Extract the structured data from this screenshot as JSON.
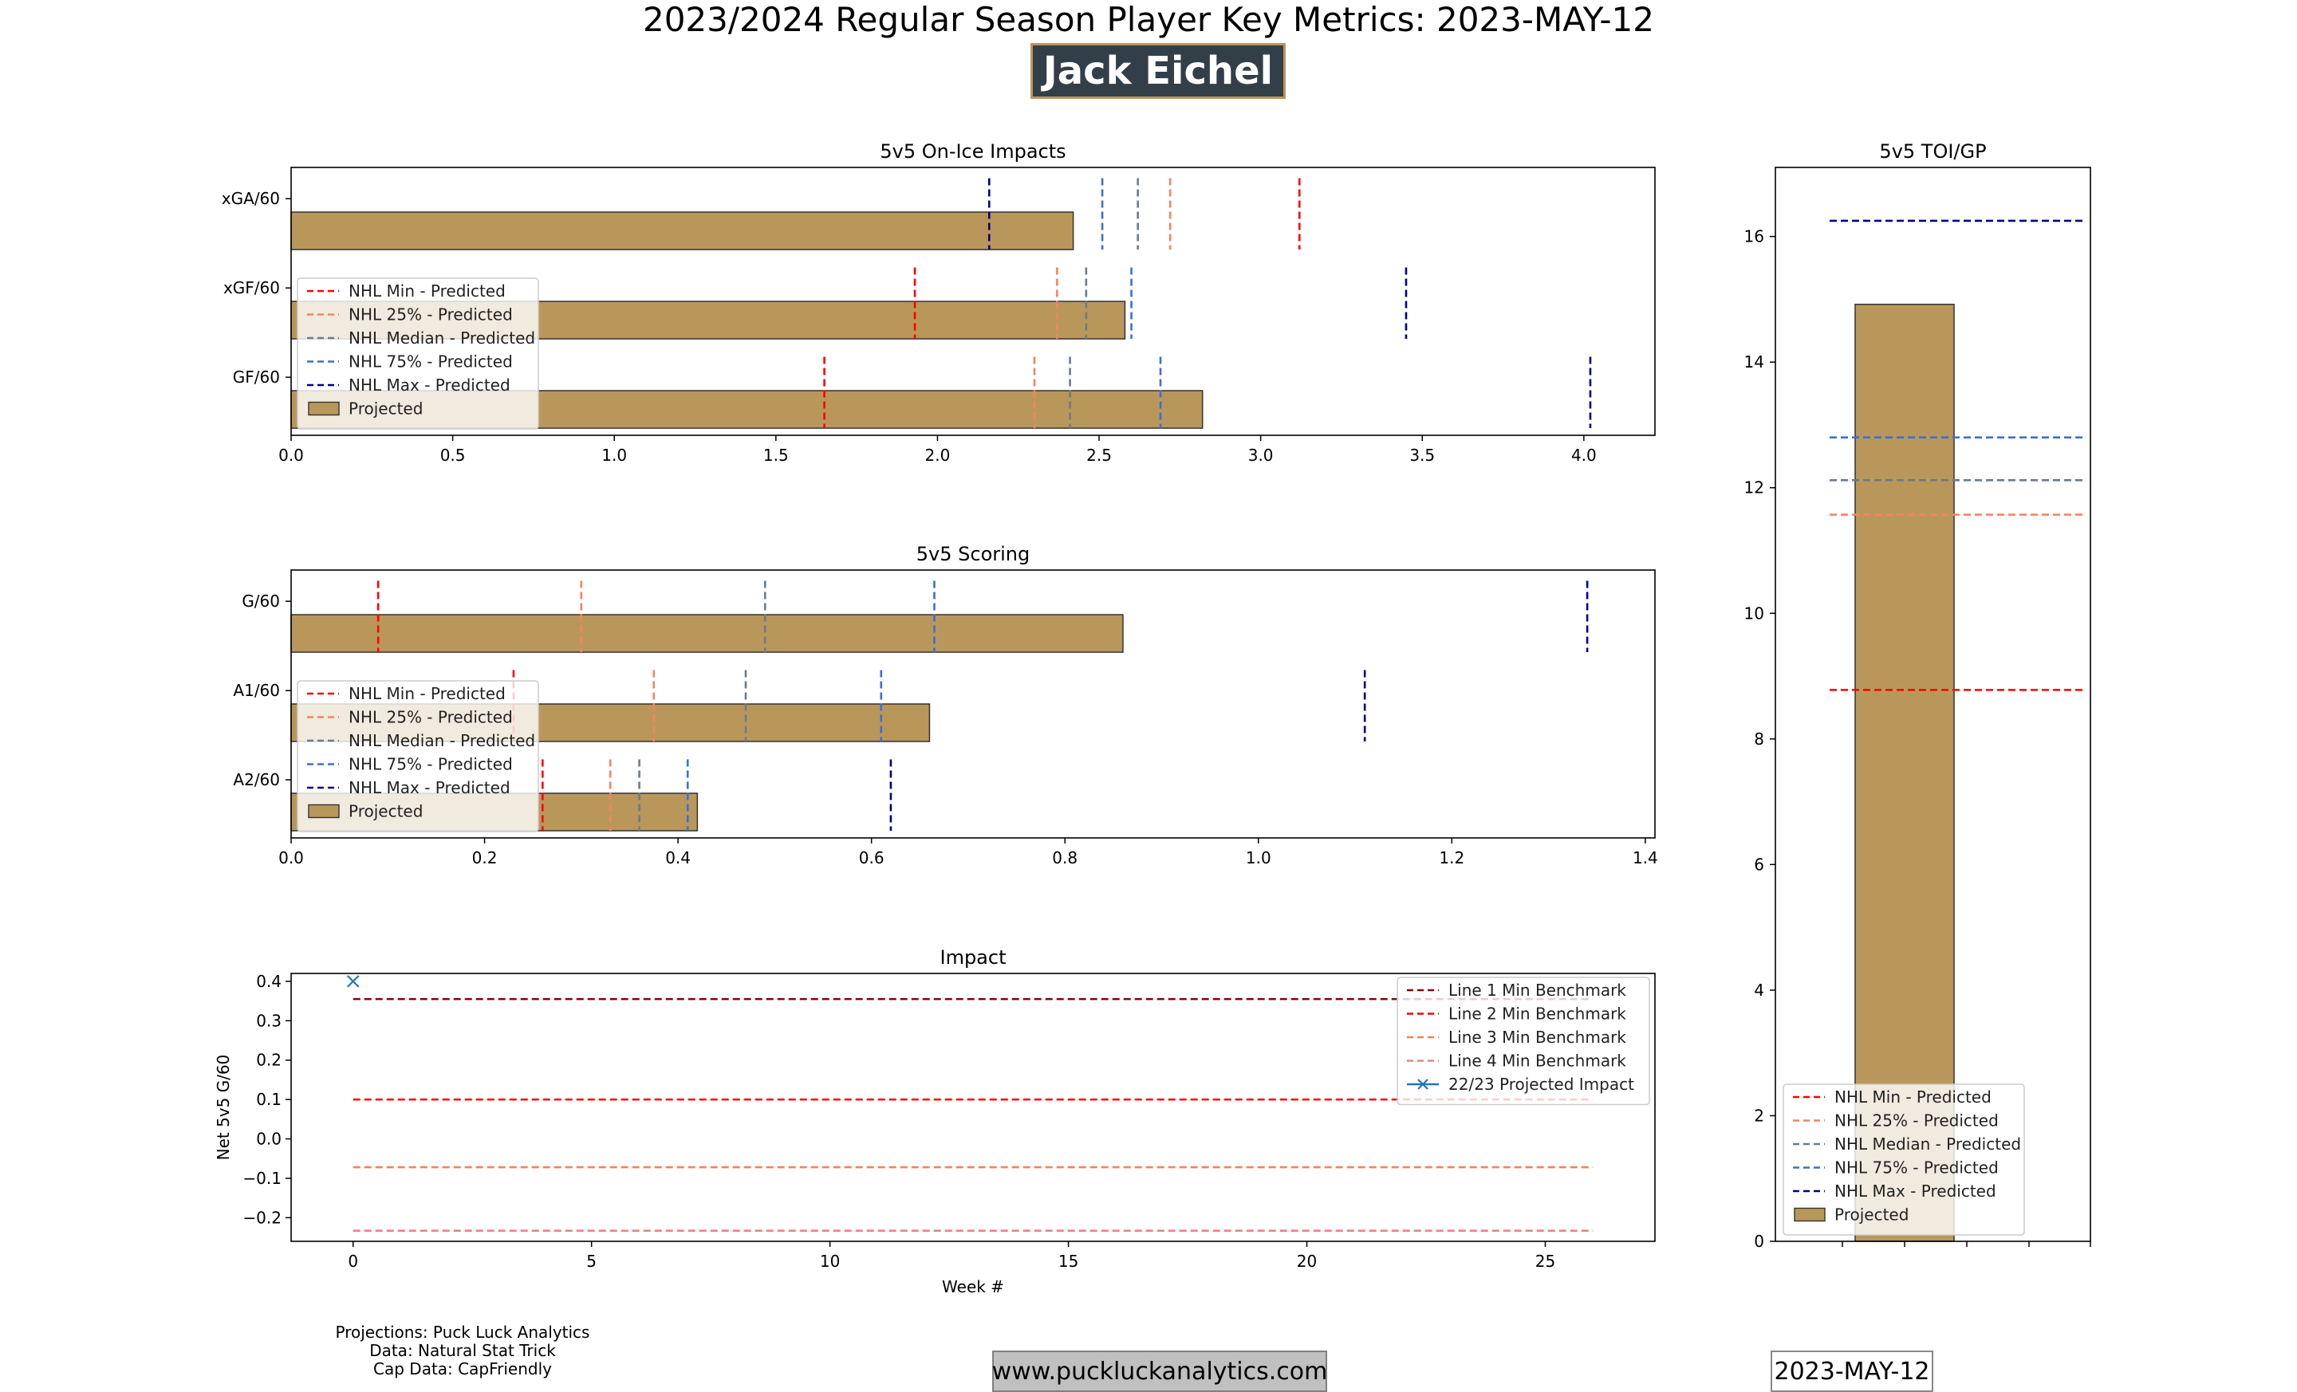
{
  "suptitle": "2023/2024 Regular Season Player Key Metrics: 2023-MAY-12",
  "player_name": "Jack Eichel",
  "credits": [
    "Projections: Puck Luck Analytics",
    "Data: Natural Stat Trick",
    "Cap Data: CapFriendly"
  ],
  "website": "www.puckluckanalytics.com",
  "date_badge": "2023-MAY-12",
  "colors": {
    "projected_fill": "#b9975b",
    "nhl_min": "#ff0000",
    "nhl_25": "#f4845f",
    "nhl_median": "#6b7b8c",
    "nhl_75": "#3a6fd8",
    "nhl_max": "#00008b",
    "line1": "#8b0000",
    "line2": "#ff0000",
    "line3": "#ff7f50",
    "line4": "#f08080",
    "impact_marker": "#1f77b4"
  },
  "chart_data": [
    {
      "type": "bar",
      "orientation": "horizontal",
      "title": "5v5 On-Ice Impacts",
      "categories": [
        "xGA/60",
        "xGF/60",
        "GF/60"
      ],
      "projected": [
        2.42,
        2.58,
        2.82
      ],
      "benchmarks": {
        "NHL Min - Predicted": [
          3.12,
          1.93,
          1.65
        ],
        "NHL 25% - Predicted": [
          2.72,
          2.37,
          2.3
        ],
        "NHL Median - Predicted": [
          2.62,
          2.46,
          2.41
        ],
        "NHL 75% - Predicted": [
          2.51,
          2.6,
          2.69
        ],
        "NHL Max - Predicted": [
          2.16,
          3.45,
          4.02
        ]
      },
      "xlim": [
        0,
        4.22
      ],
      "xticks": [
        "0.0",
        "0.5",
        "1.0",
        "1.5",
        "2.0",
        "2.5",
        "3.0",
        "3.5",
        "4.0"
      ],
      "legend": [
        "NHL Min - Predicted",
        "NHL 25% - Predicted",
        "NHL Median - Predicted",
        "NHL 75% - Predicted",
        "NHL Max - Predicted",
        "Projected"
      ],
      "legend_position": "lower-left"
    },
    {
      "type": "bar",
      "orientation": "horizontal",
      "title": "5v5 Scoring",
      "categories": [
        "G/60",
        "A1/60",
        "A2/60"
      ],
      "projected": [
        0.86,
        0.66,
        0.42
      ],
      "benchmarks": {
        "NHL Min - Predicted": [
          0.09,
          0.23,
          0.26
        ],
        "NHL 25% - Predicted": [
          0.3,
          0.375,
          0.33
        ],
        "NHL Median - Predicted": [
          0.49,
          0.47,
          0.36
        ],
        "NHL 75% - Predicted": [
          0.665,
          0.61,
          0.41
        ],
        "NHL Max - Predicted": [
          1.34,
          1.11,
          0.62
        ]
      },
      "xlim": [
        0,
        1.41
      ],
      "xticks": [
        "0.0",
        "0.2",
        "0.4",
        "0.6",
        "0.8",
        "1.0",
        "1.2",
        "1.4"
      ],
      "legend": [
        "NHL Min - Predicted",
        "NHL 25% - Predicted",
        "NHL Median - Predicted",
        "NHL 75% - Predicted",
        "NHL Max - Predicted",
        "Projected"
      ],
      "legend_position": "lower-left"
    },
    {
      "type": "line",
      "title": "Impact",
      "xlabel": "Week #",
      "ylabel": "Net 5v5 G/60",
      "xlim": [
        -1.3,
        27.3
      ],
      "ylim": [
        -0.26,
        0.42
      ],
      "xticks": [
        "0",
        "5",
        "10",
        "15",
        "20",
        "25"
      ],
      "yticks": [
        "0.4",
        "0.3",
        "0.2",
        "0.1",
        "0.0",
        "−0.1",
        "−0.2"
      ],
      "series": [
        {
          "name": "Line 1 Min Benchmark",
          "x": [
            0,
            26
          ],
          "y": [
            0.355,
            0.355
          ],
          "style": "dashed"
        },
        {
          "name": "Line 2 Min Benchmark",
          "x": [
            0,
            26
          ],
          "y": [
            0.1,
            0.1
          ],
          "style": "dashed"
        },
        {
          "name": "Line 3 Min Benchmark",
          "x": [
            0,
            26
          ],
          "y": [
            -0.072,
            -0.072
          ],
          "style": "dashed"
        },
        {
          "name": "Line 4 Min Benchmark",
          "x": [
            0,
            26
          ],
          "y": [
            -0.233,
            -0.233
          ],
          "style": "dashed"
        },
        {
          "name": "22/23 Projected Impact",
          "x": [
            -0.0
          ],
          "y": [
            0.4
          ],
          "style": "marker-x"
        }
      ],
      "legend_position": "upper-right"
    },
    {
      "type": "bar",
      "orientation": "vertical",
      "title": "5v5 TOI/GP",
      "projected": 14.92,
      "benchmarks": {
        "NHL Min - Predicted": 8.78,
        "NHL 25% - Predicted": 11.57,
        "NHL Median - Predicted": 12.12,
        "NHL 75% - Predicted": 12.8,
        "NHL Max - Predicted": 16.25
      },
      "ylim": [
        0,
        17.1
      ],
      "yticks": [
        "0",
        "2",
        "4",
        "6",
        "8",
        "10",
        "12",
        "14",
        "16"
      ],
      "legend": [
        "NHL Min - Predicted",
        "NHL 25% - Predicted",
        "NHL Median - Predicted",
        "NHL 75% - Predicted",
        "NHL Max - Predicted",
        "Projected"
      ],
      "legend_position": "lower-left"
    }
  ]
}
